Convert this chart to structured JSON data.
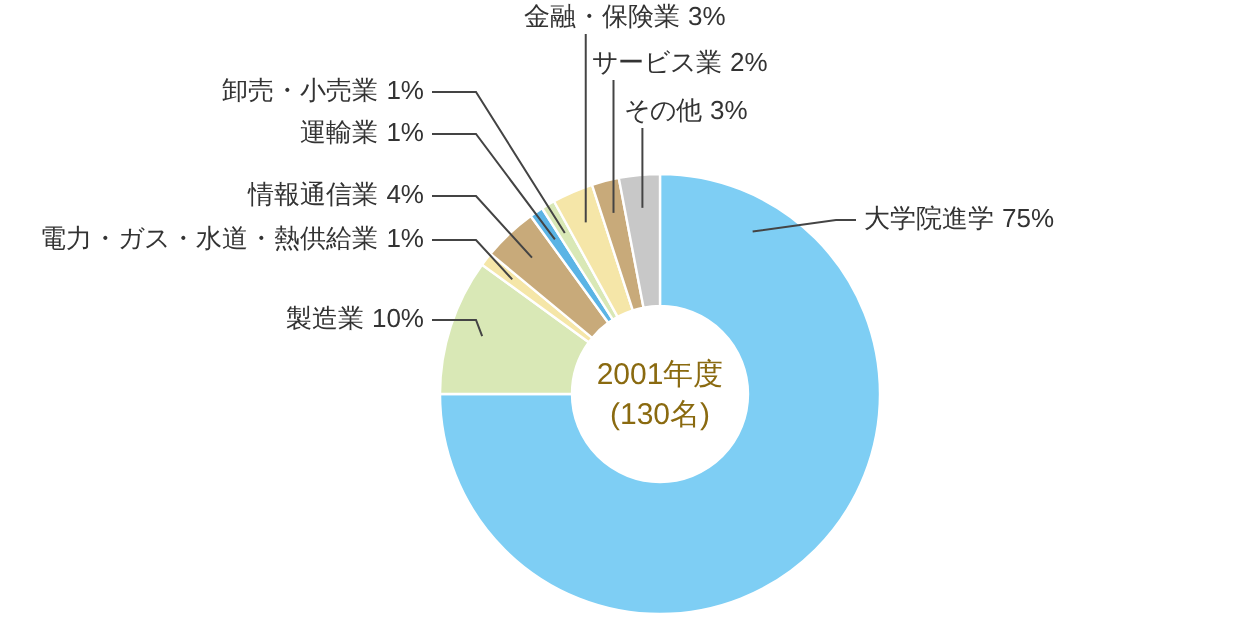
{
  "chart_data": {
    "type": "donut",
    "title": "2001年度",
    "subtitle": "(130名)",
    "value_labels": [
      "75%",
      "10%",
      "1%",
      "4%",
      "1%",
      "1%",
      "3%",
      "2%",
      "3%"
    ],
    "legend": false,
    "categories": [
      "大学院進学",
      "製造業",
      "電力・ガス・水道・熱供給業",
      "情報通信業",
      "運輸業",
      "卸売・小売業",
      "金融・保険業",
      "サービス業",
      "その他"
    ],
    "values": [
      75,
      10,
      1,
      4,
      1,
      1,
      3,
      2,
      3
    ],
    "colors": [
      "#7ecef4",
      "#d9e8b6",
      "#f5e6a8",
      "#c8aa7a",
      "#5bb4e5",
      "#d9e8b6",
      "#f5e6a8",
      "#c8aa7a",
      "#c8c8c8"
    ]
  }
}
